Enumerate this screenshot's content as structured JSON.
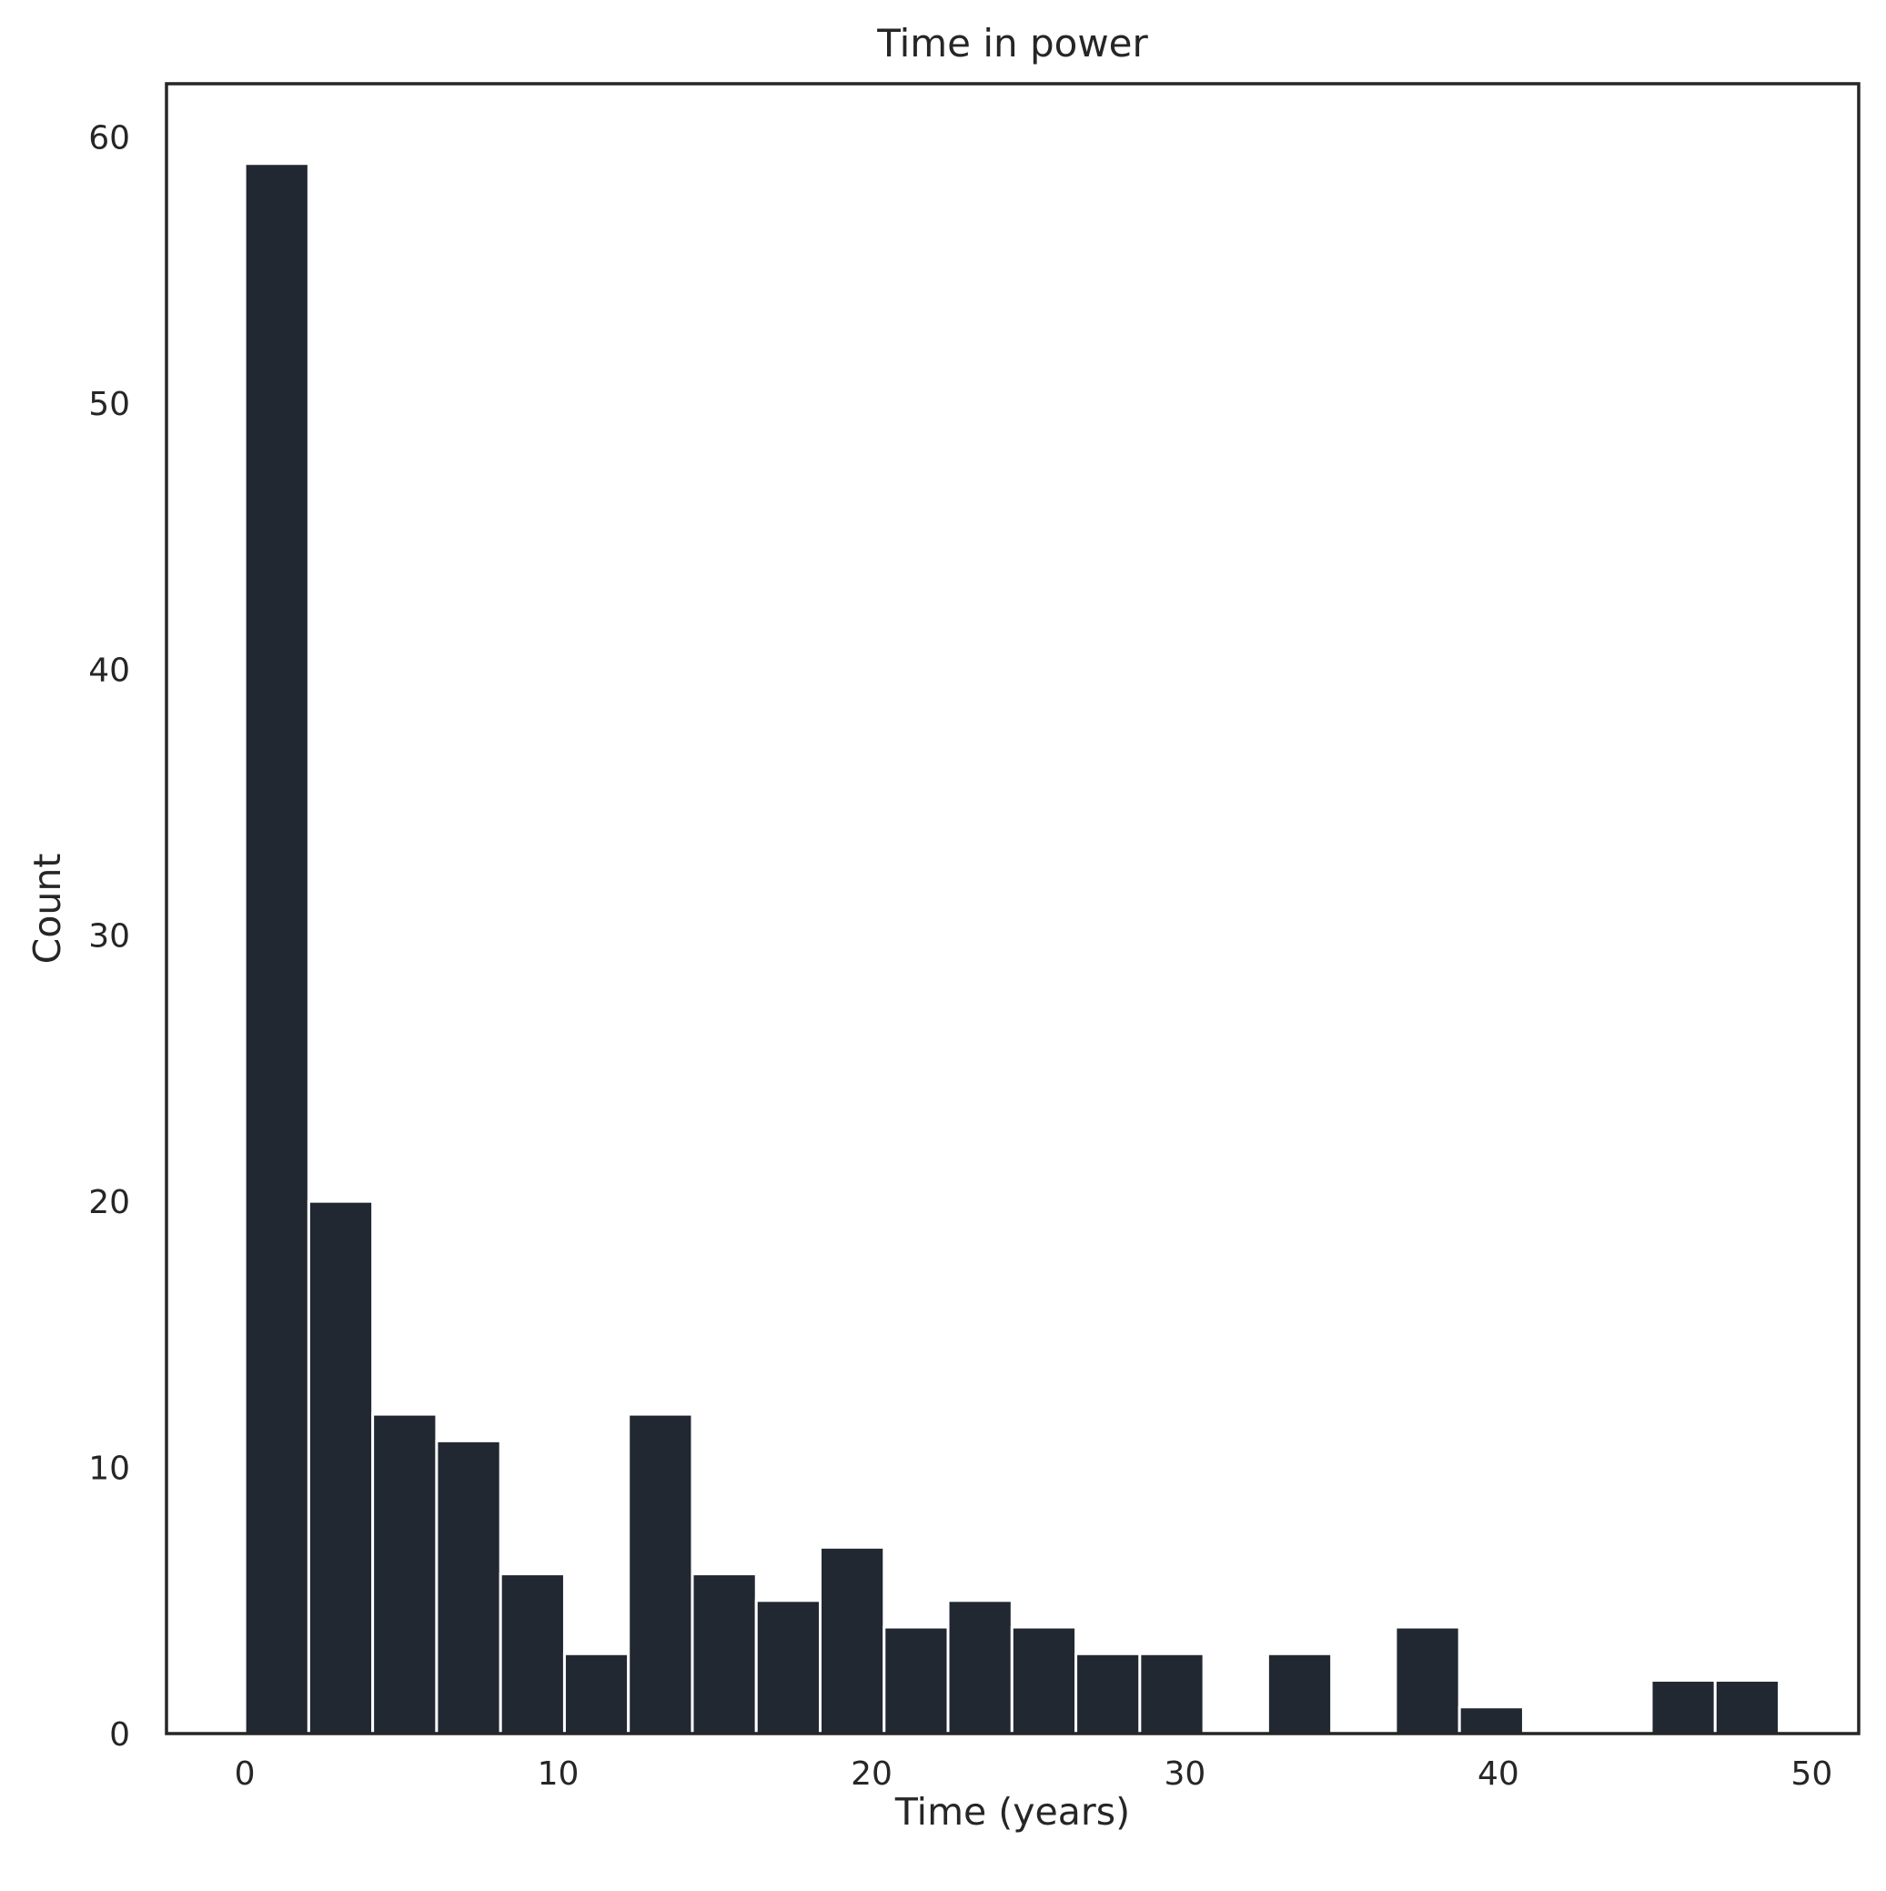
{
  "chart_data": {
    "type": "bar",
    "title": "Time in power",
    "xlabel": "Time (years)",
    "ylabel": "Count",
    "xlim": [
      -2.5,
      51.5
    ],
    "ylim": [
      0,
      62
    ],
    "xticks": [
      "0",
      "10",
      "20",
      "30",
      "40",
      "50"
    ],
    "yticks": [
      "0",
      "10",
      "20",
      "30",
      "40",
      "50",
      "60"
    ],
    "bin_edges": [
      0,
      2.04,
      4.08,
      6.12,
      8.16,
      10.2,
      12.24,
      14.28,
      16.32,
      18.36,
      20.4,
      22.44,
      24.48,
      26.52,
      28.56,
      30.6,
      32.64,
      34.68,
      36.72,
      38.76,
      40.8,
      42.84,
      44.88,
      46.92,
      48.96
    ],
    "counts": [
      59,
      20,
      12,
      11,
      6,
      3,
      12,
      6,
      5,
      7,
      4,
      5,
      4,
      3,
      3,
      0,
      3,
      0,
      4,
      1,
      0,
      0,
      2,
      2
    ],
    "grid": false,
    "bar_color": "#222831",
    "frame_color": "#262626"
  }
}
